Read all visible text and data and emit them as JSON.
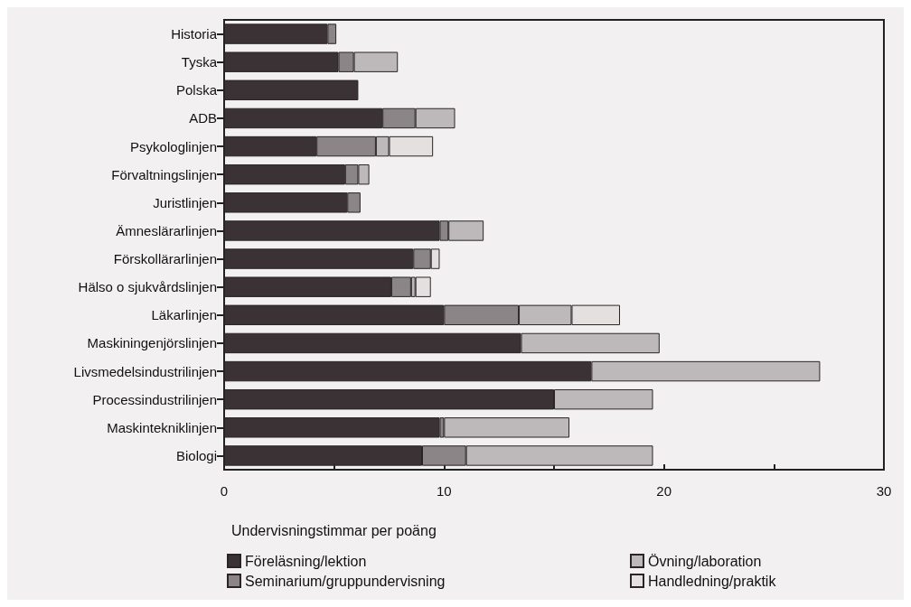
{
  "chart_data": {
    "type": "bar",
    "orientation": "horizontal",
    "stacked": true,
    "xlabel": "Undervisningstimmar per poäng",
    "categories": [
      "Historia",
      "Tyska",
      "Polska",
      "ADB",
      "Psykologlinjen",
      "Förvaltningslinjen",
      "Juristlinjen",
      "Ämneslärarlinjen",
      "Förskollärarlinjen",
      "Hälso o sjukvårdslinjen",
      "Läkarlinjen",
      "Maskiningenjörslinjen",
      "Livsmedelsindustrilinjen",
      "Processindustrilinjen",
      "Maskintekniklinjen",
      "Biologi"
    ],
    "series": [
      {
        "name": "Föreläsning/lektion",
        "color": "#3a3234",
        "values": [
          4.7,
          5.2,
          6.1,
          7.2,
          4.2,
          5.5,
          5.6,
          9.8,
          8.6,
          7.6,
          10.0,
          13.5,
          16.7,
          15.0,
          9.8,
          9.0
        ]
      },
      {
        "name": "Seminarium/gruppundervisning",
        "color": "#8c8587",
        "values": [
          0.4,
          0.7,
          null,
          1.5,
          2.7,
          0.6,
          0.6,
          0.4,
          0.8,
          0.9,
          3.4,
          null,
          null,
          null,
          0.2,
          2.0
        ]
      },
      {
        "name": "Övning/laboration",
        "color": "#bdb8b9",
        "values": [
          null,
          2.0,
          null,
          1.8,
          0.6,
          0.5,
          null,
          1.6,
          null,
          0.2,
          2.4,
          6.3,
          10.4,
          4.5,
          5.7,
          8.5
        ]
      },
      {
        "name": "Handledning/praktik",
        "color": "#e4e0e0",
        "values": [
          null,
          null,
          null,
          null,
          2.0,
          null,
          null,
          null,
          0.4,
          0.7,
          2.2,
          null,
          null,
          null,
          null,
          null
        ]
      }
    ],
    "xlim": [
      0,
      30
    ],
    "xticks": [
      0,
      {
        "value": 5,
        "label": null
      },
      10,
      {
        "value": 15,
        "label": null
      },
      20,
      {
        "value": 25,
        "label": null
      },
      30
    ],
    "grid": false,
    "legend": "bottom"
  }
}
